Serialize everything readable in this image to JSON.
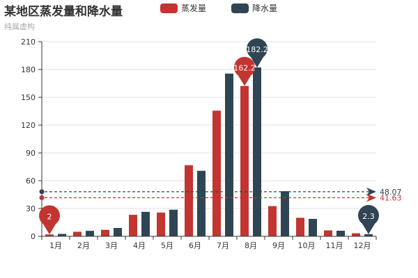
{
  "chart_data": {
    "type": "bar",
    "title": "某地区蒸发量和降水量",
    "subtitle": "纯属虚构",
    "categories": [
      "1月",
      "2月",
      "3月",
      "4月",
      "5月",
      "6月",
      "7月",
      "8月",
      "9月",
      "10月",
      "11月",
      "12月"
    ],
    "series": [
      {
        "name": "蒸发量",
        "color": "#c23531",
        "values": [
          2.0,
          4.9,
          7.0,
          23.2,
          25.6,
          76.7,
          135.6,
          162.2,
          32.6,
          20.0,
          6.4,
          3.3
        ]
      },
      {
        "name": "降水量",
        "color": "#2f4554",
        "values": [
          2.6,
          5.9,
          9.0,
          26.4,
          28.7,
          70.7,
          175.6,
          182.2,
          48.7,
          18.8,
          6.0,
          2.3
        ]
      }
    ],
    "ylim": [
      0,
      210
    ],
    "yticks": [
      0,
      30,
      60,
      90,
      120,
      150,
      180,
      210
    ],
    "legend_position": "top",
    "grid": true,
    "mark_points": [
      {
        "series": 0,
        "category": "8月",
        "label": "162.2"
      },
      {
        "series": 0,
        "category": "1月",
        "label": "2"
      },
      {
        "series": 1,
        "category": "8月",
        "label": "182.2"
      },
      {
        "series": 1,
        "category": "12月",
        "label": "2.3"
      }
    ],
    "mark_lines": [
      {
        "series": 0,
        "value": 41.63,
        "label": "41.63"
      },
      {
        "series": 1,
        "value": 48.07,
        "label": "48.07"
      }
    ]
  }
}
